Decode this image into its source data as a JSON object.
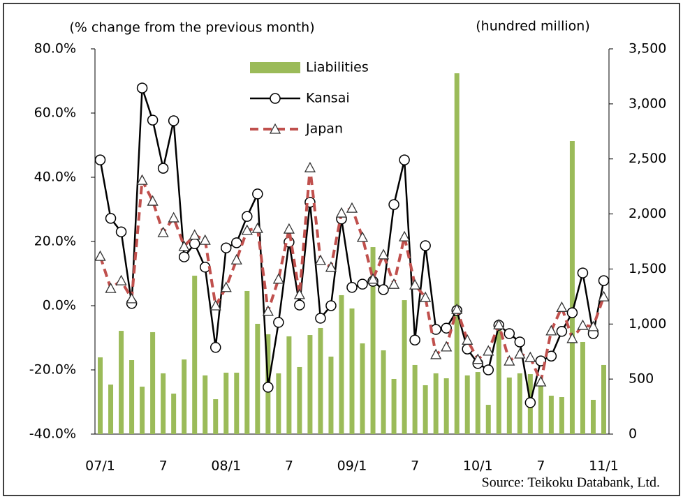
{
  "chart_data": {
    "type": "combo",
    "y_label": "(% change from the previous month)",
    "y2_label": "(hundred million)",
    "note": "Source: Teikoku Databank, Ltd.",
    "categories": [
      "07/1",
      null,
      null,
      null,
      null,
      null,
      "7",
      null,
      null,
      null,
      null,
      null,
      "08/1",
      null,
      null,
      null,
      null,
      null,
      "7",
      null,
      null,
      null,
      null,
      null,
      "09/1",
      null,
      null,
      null,
      null,
      null,
      "7",
      null,
      null,
      null,
      null,
      null,
      "10/1",
      null,
      null,
      null,
      null,
      null,
      "7",
      null,
      null,
      null,
      null,
      null,
      "11/1"
    ],
    "ylim": [
      -40,
      80
    ],
    "yticks": [
      {
        "value": -40,
        "label": "-40.0%"
      },
      {
        "value": -20,
        "label": "-20.0%"
      },
      {
        "value": 0,
        "label": "0.0%"
      },
      {
        "value": 20,
        "label": "20.0%"
      },
      {
        "value": 40,
        "label": "40.0%"
      },
      {
        "value": 60,
        "label": "60.0%"
      },
      {
        "value": 80,
        "label": "80.0%"
      }
    ],
    "y2lim": [
      0,
      3500
    ],
    "y2ticks": [
      0,
      500,
      {
        "value": 1000,
        "label": "1,000"
      },
      {
        "value": 1500,
        "label": "1,500"
      },
      {
        "value": 2000,
        "label": "2,000"
      },
      {
        "value": 2500,
        "label": "2,500"
      },
      {
        "value": 3000,
        "label": "3,000"
      },
      {
        "value": 3500,
        "label": "3,500"
      }
    ],
    "grid": false,
    "series": [
      {
        "name": "Liabilities",
        "type": "bar",
        "axis": "y2",
        "color": "#9bbb59",
        "values": [
          697,
          450,
          938,
          672,
          431,
          926,
          552,
          368,
          678,
          1439,
          533,
          317,
          558,
          558,
          1300,
          1002,
          907,
          552,
          888,
          609,
          900,
          964,
          704,
          1262,
          1141,
          824,
          1699,
          761,
          501,
          1217,
          628,
          444,
          552,
          507,
          3278,
          533,
          564,
          266,
          945,
          514,
          552,
          545,
          437,
          349,
          336,
          2663,
          837,
          311,
          628
        ]
      },
      {
        "name": "Kansai",
        "type": "line",
        "color": "#000000",
        "marker": "circle",
        "dashed": false,
        "values": [
          45.4,
          27.2,
          23.0,
          0.7,
          67.8,
          57.8,
          42.8,
          57.6,
          15.2,
          19.3,
          12.0,
          -13.0,
          18.0,
          19.6,
          27.8,
          34.8,
          -25.4,
          -5.2,
          19.8,
          0.2,
          32.2,
          -3.9,
          0.0,
          27.0,
          5.7,
          6.7,
          7.6,
          5.0,
          31.5,
          45.4,
          -10.7,
          18.7,
          -7.4,
          -7.0,
          -1.5,
          -13.5,
          -18.0,
          -20.0,
          -6.1,
          -8.7,
          -11.3,
          -30.2,
          -17.2,
          -15.7,
          -8.0,
          -2.2,
          10.2,
          -8.7,
          7.8
        ]
      },
      {
        "name": "Japan",
        "type": "line",
        "color": "#c0504d",
        "marker": "triangle",
        "dashed": true,
        "values": [
          15.4,
          5.4,
          7.8,
          2.2,
          39.1,
          32.6,
          22.8,
          27.4,
          18.5,
          22.0,
          20.4,
          0.0,
          5.7,
          14.3,
          23.5,
          24.1,
          -1.7,
          8.3,
          23.9,
          3.5,
          43.0,
          14.1,
          12.0,
          28.9,
          30.4,
          21.3,
          8.3,
          15.9,
          6.7,
          21.5,
          6.5,
          2.6,
          -15.2,
          -12.8,
          -1.1,
          -10.7,
          -16.7,
          -14.1,
          -5.9,
          -17.2,
          -15.0,
          -16.1,
          -23.7,
          -7.8,
          -0.5,
          -10.2,
          -6.1,
          -6.5,
          2.8
        ]
      }
    ]
  }
}
